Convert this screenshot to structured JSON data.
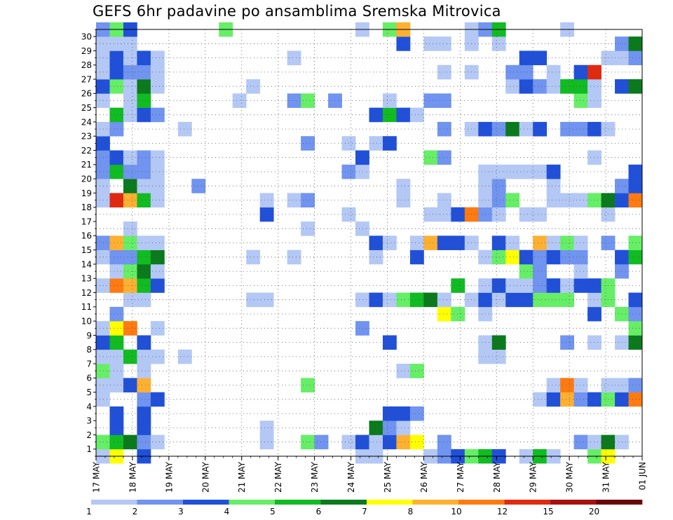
{
  "chart_data": {
    "type": "heatmap",
    "title": "GEFS 6hr padavine po ansamblima Sremska Mitrovica",
    "xlabel": "",
    "ylabel": "",
    "x_ticks": [
      "17 MAY",
      "18 MAY",
      "19 MAY",
      "20 MAY",
      "21 MAY",
      "22 MAY",
      "23 MAY",
      "24 MAY",
      "25 MAY",
      "26 MAY",
      "27 MAY",
      "28 MAY",
      "29 MAY",
      "30 MAY",
      "31 MAY",
      "01 JUN"
    ],
    "x_range": [
      "17 MAY 00Z",
      "01 JUN 00Z"
    ],
    "time_step_hours": 6,
    "y_ticks": [
      1,
      2,
      3,
      4,
      5,
      6,
      7,
      8,
      9,
      10,
      11,
      12,
      13,
      14,
      15,
      16,
      17,
      18,
      19,
      20,
      21,
      22,
      23,
      24,
      25,
      26,
      27,
      28,
      29,
      30
    ],
    "y_range": [
      0,
      30
    ],
    "grid": true,
    "legend": {
      "placement": "bottom",
      "levels": [
        "1",
        "2",
        "3",
        "4",
        "5",
        "6",
        "7",
        "8",
        "10",
        "12",
        "15",
        "20"
      ],
      "colors": [
        "#b4c8f5",
        "#7094ef",
        "#2150d8",
        "#66ee66",
        "#11bb22",
        "#0a7a1c",
        "#ffff00",
        "#ffb030",
        "#ff7a10",
        "#e02a10",
        "#a81010",
        "#6a0606"
      ]
    },
    "colors_by_class": {
      "1": "#b4c8f5",
      "2": "#7094ef",
      "3": "#2150d8",
      "4": "#66ee66",
      "5": "#11bb22",
      "6": "#0a7a1c",
      "7": "#ffff00",
      "8": "#ffb030",
      "9": "#ff7a10",
      "10": "#e02a10",
      "11": "#a81010"
    },
    "cells_by_member": {
      "30": [
        [
          0,
          2
        ],
        [
          1,
          4
        ],
        [
          2,
          3
        ],
        [
          9,
          4
        ],
        [
          19,
          1
        ],
        [
          21,
          4
        ],
        [
          22,
          8
        ],
        [
          27,
          1
        ],
        [
          28,
          2
        ],
        [
          29,
          5
        ],
        [
          34,
          1
        ]
      ],
      "29": [
        [
          0,
          1
        ],
        [
          1,
          1
        ],
        [
          2,
          1
        ],
        [
          22,
          3
        ],
        [
          24,
          1
        ],
        [
          25,
          1
        ],
        [
          27,
          1
        ],
        [
          29,
          1
        ],
        [
          38,
          2
        ],
        [
          39,
          6
        ]
      ],
      "28": [
        [
          0,
          1
        ],
        [
          1,
          3
        ],
        [
          2,
          1
        ],
        [
          3,
          3
        ],
        [
          4,
          1
        ],
        [
          14,
          1
        ],
        [
          31,
          3
        ],
        [
          32,
          3
        ],
        [
          37,
          1
        ],
        [
          38,
          1
        ],
        [
          39,
          2
        ]
      ],
      "27": [
        [
          0,
          1
        ],
        [
          1,
          3
        ],
        [
          2,
          2
        ],
        [
          3,
          2
        ],
        [
          4,
          1
        ],
        [
          25,
          1
        ],
        [
          27,
          1
        ],
        [
          30,
          2
        ],
        [
          31,
          2
        ],
        [
          33,
          1
        ],
        [
          35,
          3
        ],
        [
          36,
          10
        ]
      ],
      "26": [
        [
          0,
          3
        ],
        [
          1,
          4
        ],
        [
          2,
          1
        ],
        [
          3,
          6
        ],
        [
          4,
          1
        ],
        [
          11,
          1
        ],
        [
          30,
          1
        ],
        [
          31,
          3
        ],
        [
          32,
          2
        ],
        [
          33,
          1
        ],
        [
          34,
          5
        ],
        [
          35,
          5
        ],
        [
          36,
          1
        ],
        [
          38,
          3
        ],
        [
          39,
          6
        ]
      ],
      "25": [
        [
          0,
          1
        ],
        [
          2,
          1
        ],
        [
          3,
          5
        ],
        [
          10,
          1
        ],
        [
          14,
          2
        ],
        [
          15,
          4
        ],
        [
          17,
          2
        ],
        [
          21,
          1
        ],
        [
          24,
          2
        ],
        [
          25,
          2
        ],
        [
          35,
          4
        ],
        [
          36,
          1
        ]
      ],
      "24": [
        [
          1,
          5
        ],
        [
          2,
          1
        ],
        [
          3,
          3
        ],
        [
          4,
          2
        ],
        [
          20,
          3
        ],
        [
          21,
          5
        ],
        [
          22,
          3
        ],
        [
          23,
          1
        ]
      ],
      "23": [
        [
          0,
          1
        ],
        [
          1,
          2
        ],
        [
          6,
          1
        ],
        [
          25,
          2
        ],
        [
          27,
          1
        ],
        [
          28,
          3
        ],
        [
          29,
          2
        ],
        [
          30,
          6
        ],
        [
          31,
          1
        ],
        [
          32,
          3
        ],
        [
          34,
          2
        ],
        [
          35,
          2
        ],
        [
          36,
          3
        ],
        [
          37,
          1
        ]
      ],
      "22": [
        [
          0,
          3
        ],
        [
          15,
          2
        ],
        [
          18,
          1
        ],
        [
          20,
          1
        ],
        [
          21,
          3
        ]
      ],
      "21": [
        [
          0,
          2
        ],
        [
          1,
          3
        ],
        [
          2,
          1
        ],
        [
          3,
          2
        ],
        [
          4,
          1
        ],
        [
          19,
          3
        ],
        [
          24,
          4
        ],
        [
          25,
          2
        ],
        [
          36,
          1
        ]
      ],
      "20": [
        [
          0,
          2
        ],
        [
          1,
          5
        ],
        [
          2,
          2
        ],
        [
          3,
          2
        ],
        [
          4,
          1
        ],
        [
          18,
          2
        ],
        [
          19,
          1
        ],
        [
          28,
          1
        ],
        [
          29,
          1
        ],
        [
          30,
          1
        ],
        [
          31,
          1
        ],
        [
          32,
          1
        ],
        [
          33,
          3
        ],
        [
          39,
          3
        ]
      ],
      "19": [
        [
          0,
          1
        ],
        [
          2,
          6
        ],
        [
          3,
          1
        ],
        [
          4,
          1
        ],
        [
          7,
          2
        ],
        [
          22,
          1
        ],
        [
          28,
          1
        ],
        [
          29,
          2
        ],
        [
          33,
          1
        ],
        [
          38,
          2
        ],
        [
          39,
          3
        ]
      ],
      "18": [
        [
          0,
          1
        ],
        [
          1,
          10
        ],
        [
          2,
          8
        ],
        [
          3,
          5
        ],
        [
          4,
          1
        ],
        [
          12,
          1
        ],
        [
          14,
          1
        ],
        [
          15,
          2
        ],
        [
          22,
          1
        ],
        [
          25,
          1
        ],
        [
          28,
          1
        ],
        [
          29,
          2
        ],
        [
          30,
          4
        ],
        [
          33,
          1
        ],
        [
          34,
          1
        ],
        [
          35,
          1
        ],
        [
          36,
          4
        ],
        [
          37,
          6
        ],
        [
          38,
          3
        ],
        [
          39,
          9
        ]
      ],
      "17": [
        [
          12,
          3
        ],
        [
          18,
          1
        ],
        [
          24,
          1
        ],
        [
          25,
          1
        ],
        [
          26,
          3
        ],
        [
          27,
          9
        ],
        [
          28,
          2
        ],
        [
          29,
          1
        ],
        [
          31,
          1
        ],
        [
          32,
          1
        ],
        [
          37,
          1
        ]
      ],
      "16": [
        [
          2,
          1
        ],
        [
          15,
          1
        ],
        [
          19,
          1
        ]
      ],
      "15": [
        [
          0,
          2
        ],
        [
          1,
          8
        ],
        [
          2,
          4
        ],
        [
          3,
          1
        ],
        [
          4,
          1
        ],
        [
          20,
          3
        ],
        [
          21,
          1
        ],
        [
          23,
          1
        ],
        [
          24,
          8
        ],
        [
          25,
          3
        ],
        [
          26,
          3
        ],
        [
          27,
          1
        ],
        [
          29,
          3
        ],
        [
          30,
          1
        ],
        [
          32,
          8
        ],
        [
          33,
          1
        ],
        [
          34,
          4
        ],
        [
          35,
          1
        ],
        [
          37,
          2
        ],
        [
          39,
          4
        ]
      ],
      "14": [
        [
          0,
          1
        ],
        [
          1,
          2
        ],
        [
          2,
          2
        ],
        [
          3,
          5
        ],
        [
          4,
          6
        ],
        [
          11,
          1
        ],
        [
          14,
          1
        ],
        [
          20,
          1
        ],
        [
          23,
          3
        ],
        [
          28,
          1
        ],
        [
          29,
          4
        ],
        [
          30,
          7
        ],
        [
          31,
          3
        ],
        [
          32,
          2
        ],
        [
          33,
          3
        ],
        [
          34,
          2
        ],
        [
          35,
          2
        ],
        [
          38,
          3
        ],
        [
          39,
          5
        ]
      ],
      "13": [
        [
          1,
          1
        ],
        [
          2,
          4
        ],
        [
          3,
          6
        ],
        [
          4,
          1
        ],
        [
          31,
          4
        ],
        [
          32,
          2
        ],
        [
          35,
          1
        ],
        [
          38,
          2
        ]
      ],
      "12": [
        [
          0,
          1
        ],
        [
          1,
          9
        ],
        [
          2,
          8
        ],
        [
          3,
          5
        ],
        [
          4,
          3
        ],
        [
          26,
          5
        ],
        [
          28,
          1
        ],
        [
          29,
          3
        ],
        [
          30,
          1
        ],
        [
          31,
          1
        ],
        [
          32,
          2
        ],
        [
          33,
          3
        ],
        [
          34,
          1
        ],
        [
          35,
          3
        ],
        [
          36,
          3
        ],
        [
          37,
          4
        ]
      ],
      "11": [
        [
          2,
          1
        ],
        [
          3,
          1
        ],
        [
          11,
          1
        ],
        [
          12,
          1
        ],
        [
          19,
          1
        ],
        [
          20,
          3
        ],
        [
          21,
          1
        ],
        [
          22,
          4
        ],
        [
          23,
          5
        ],
        [
          24,
          6
        ],
        [
          25,
          1
        ],
        [
          27,
          1
        ],
        [
          28,
          3
        ],
        [
          29,
          1
        ],
        [
          30,
          3
        ],
        [
          31,
          3
        ],
        [
          32,
          4
        ],
        [
          33,
          4
        ],
        [
          34,
          4
        ],
        [
          36,
          1
        ],
        [
          37,
          4
        ],
        [
          39,
          3
        ]
      ],
      "10": [
        [
          1,
          2
        ],
        [
          25,
          7
        ],
        [
          26,
          4
        ],
        [
          28,
          1
        ],
        [
          36,
          3
        ],
        [
          38,
          4
        ],
        [
          39,
          2
        ]
      ],
      "9": [
        [
          0,
          1
        ],
        [
          1,
          7
        ],
        [
          2,
          9
        ],
        [
          4,
          1
        ],
        [
          19,
          2
        ],
        [
          39,
          4
        ]
      ],
      "8": [
        [
          0,
          3
        ],
        [
          1,
          5
        ],
        [
          3,
          3
        ],
        [
          21,
          3
        ],
        [
          28,
          1
        ],
        [
          29,
          6
        ],
        [
          34,
          2
        ],
        [
          36,
          1
        ],
        [
          38,
          1
        ],
        [
          39,
          6
        ]
      ],
      "7": [
        [
          0,
          1
        ],
        [
          1,
          1
        ],
        [
          2,
          5
        ],
        [
          3,
          1
        ],
        [
          4,
          1
        ],
        [
          6,
          1
        ],
        [
          28,
          1
        ],
        [
          29,
          1
        ]
      ],
      "6": [
        [
          0,
          4
        ],
        [
          1,
          1
        ],
        [
          3,
          1
        ],
        [
          22,
          1
        ],
        [
          23,
          4
        ]
      ],
      "5": [
        [
          0,
          1
        ],
        [
          1,
          1
        ],
        [
          2,
          3
        ],
        [
          3,
          8
        ],
        [
          15,
          4
        ],
        [
          33,
          1
        ],
        [
          34,
          9
        ],
        [
          35,
          1
        ],
        [
          37,
          1
        ],
        [
          38,
          1
        ],
        [
          39,
          2
        ]
      ],
      "4": [
        [
          0,
          1
        ],
        [
          3,
          2
        ],
        [
          4,
          3
        ],
        [
          32,
          1
        ],
        [
          33,
          3
        ],
        [
          34,
          8
        ],
        [
          35,
          2
        ],
        [
          36,
          3
        ],
        [
          37,
          4
        ],
        [
          38,
          3
        ],
        [
          39,
          9
        ]
      ],
      "3": [
        [
          1,
          3
        ],
        [
          3,
          3
        ],
        [
          21,
          3
        ],
        [
          22,
          3
        ],
        [
          23,
          2
        ]
      ],
      "2": [
        [
          1,
          3
        ],
        [
          3,
          3
        ],
        [
          12,
          1
        ],
        [
          20,
          6
        ],
        [
          21,
          2
        ],
        [
          22,
          1
        ]
      ],
      "1": [
        [
          0,
          4
        ],
        [
          1,
          5
        ],
        [
          2,
          6
        ],
        [
          3,
          2
        ],
        [
          4,
          1
        ],
        [
          12,
          1
        ],
        [
          15,
          4
        ],
        [
          16,
          2
        ],
        [
          18,
          1
        ],
        [
          19,
          3
        ],
        [
          20,
          1
        ],
        [
          21,
          3
        ],
        [
          22,
          8
        ],
        [
          23,
          7
        ],
        [
          25,
          2
        ],
        [
          35,
          2
        ],
        [
          36,
          1
        ],
        [
          37,
          6
        ],
        [
          38,
          1
        ]
      ],
      "0": [
        [
          0,
          1
        ],
        [
          1,
          7
        ],
        [
          3,
          3
        ],
        [
          19,
          1
        ],
        [
          20,
          1
        ],
        [
          24,
          1
        ],
        [
          25,
          2
        ],
        [
          26,
          3
        ],
        [
          27,
          4
        ],
        [
          28,
          5
        ],
        [
          29,
          3
        ],
        [
          31,
          1
        ],
        [
          32,
          5
        ],
        [
          33,
          1
        ],
        [
          36,
          4
        ],
        [
          37,
          7
        ]
      ]
    }
  }
}
